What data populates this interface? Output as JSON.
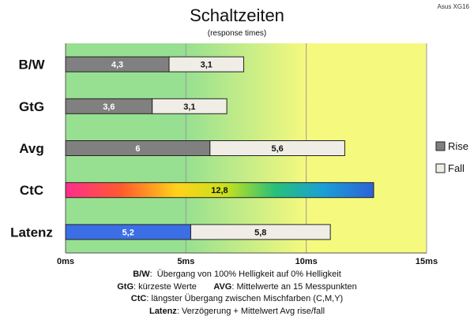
{
  "brand_label": "Asus XG16",
  "chart_data": {
    "type": "bar",
    "orientation": "horizontal",
    "stacked": true,
    "title": "Schaltzeiten",
    "subtitle": "(response times)",
    "categories": [
      "B/W",
      "GtG",
      "Avg",
      "CtC",
      "Latenz"
    ],
    "series": [
      {
        "name": "Rise",
        "values": [
          4.3,
          3.6,
          6,
          12.8,
          5.2
        ],
        "labels": [
          "4,3",
          "3,6",
          "6",
          "12,8",
          "5,2"
        ],
        "color": "#808080"
      },
      {
        "name": "Fall",
        "values": [
          3.1,
          3.1,
          5.6,
          null,
          5.8
        ],
        "labels": [
          "3,1",
          "3,1",
          "5,6",
          "",
          "5,8"
        ],
        "color": "#efede6"
      }
    ],
    "special_fills": {
      "CtC": "rainbow",
      "Latenz_rise": "#3c6ee6"
    },
    "xlim": [
      0,
      15
    ],
    "x_ticks": [
      0,
      5,
      10,
      15
    ],
    "x_tick_labels": [
      "0ms",
      "5ms",
      "10ms",
      "15ms"
    ],
    "background_bands": {
      "green_to": 5,
      "gradient_to": 10,
      "yellow_to": 15
    },
    "grid": true,
    "legend_position": "right"
  },
  "notes": [
    {
      "label": "B/W",
      "text": "Übergang von 100% Helligkeit auf 0% Helligkeit"
    },
    {
      "label": "GtG",
      "text": "kürzeste  Werte"
    },
    {
      "label": "AVG",
      "text": "Mittelwerte  an 15 Messpunkten"
    },
    {
      "label": "CtC",
      "text": "längster Übergang zwischen Mischfarben (C,M,Y)"
    },
    {
      "label": "Latenz",
      "text": "Verzögerung  + Mittelwert Avg rise/fall"
    }
  ]
}
